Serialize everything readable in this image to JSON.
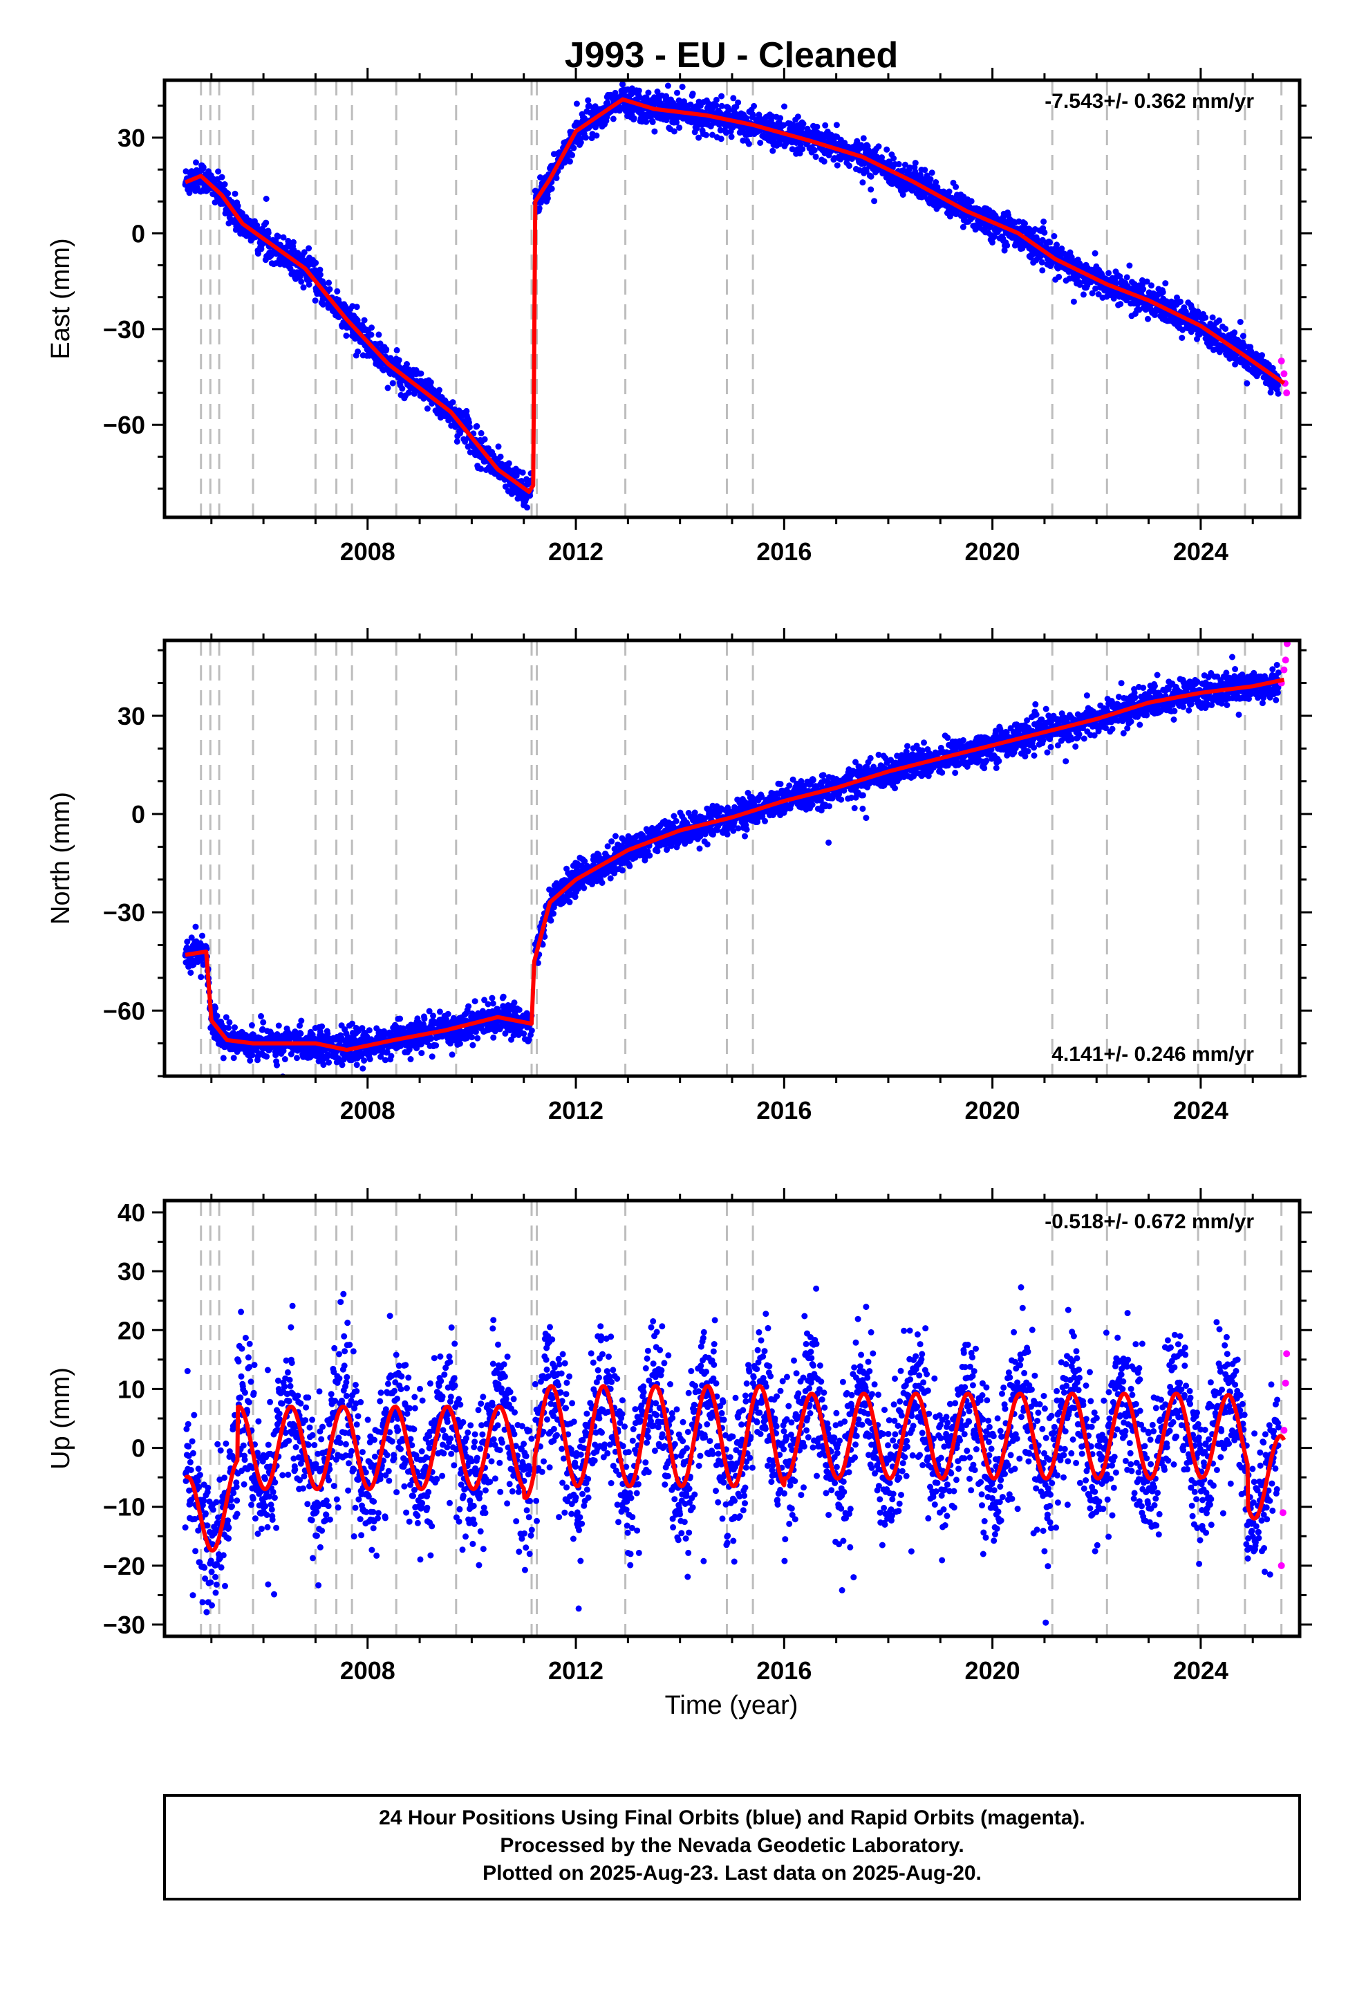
{
  "title": "J993  - EU - Cleaned",
  "xlabel": "Time (year)",
  "footer": [
    "24 Hour Positions Using Final Orbits (blue) and Rapid Orbits (magenta).",
    "Processed by the Nevada Geodetic Laboratory.",
    "Plotted on 2025-Aug-23. Last data on 2025-Aug-20."
  ],
  "colors": {
    "final_orbits": "#0000ff",
    "rapid_orbits": "#ff00ff",
    "model": "#ff0000",
    "event_lines": "#bdbdbd"
  },
  "chart_data": [
    {
      "type": "scatter",
      "panel": "east",
      "ylabel": "East (mm)",
      "rate_text": "-7.543+/- 0.362 mm/yr",
      "rate_position": "top-right",
      "xlim": [
        2004.1,
        2025.9
      ],
      "ylim": [
        -89,
        48
      ],
      "yticks": [
        30,
        0,
        -30,
        -60
      ],
      "xticks": [
        2008,
        2012,
        2016,
        2020,
        2024
      ],
      "model_line": {
        "name": "",
        "x": [
          2004.5,
          2004.8,
          2005.2,
          2005.6,
          2006.8,
          2007.6,
          2008.4,
          2009.6,
          2010.5,
          2011.1,
          2011.18,
          2011.22,
          2011.5,
          2012.0,
          2012.9,
          2013.5,
          2014.5,
          2015.4,
          2016.5,
          2017.5,
          2018.5,
          2019.5,
          2020.5,
          2021.2,
          2022.2,
          2023.0,
          2024.0,
          2024.9,
          2025.6
        ],
        "y": [
          16,
          18,
          12,
          3,
          -11,
          -27,
          -41,
          -56,
          -74,
          -81,
          -79,
          10,
          17,
          32,
          42,
          39,
          37,
          34,
          29,
          24,
          16,
          7,
          0,
          -8,
          -16,
          -21,
          -29,
          -39,
          -47
        ]
      },
      "final_scatter": "blue points scattered around model, spread ~3 mm",
      "rapid_points": {
        "x": [
          2025.55,
          2025.6,
          2025.62,
          2025.65
        ],
        "y": [
          -40,
          -44,
          -47,
          -50
        ]
      }
    },
    {
      "type": "scatter",
      "panel": "north",
      "ylabel": "North (mm)",
      "rate_text": "4.141+/- 0.246 mm/yr",
      "rate_position": "bottom-right",
      "xlim": [
        2004.1,
        2025.9
      ],
      "ylim": [
        -80,
        53
      ],
      "yticks": [
        30,
        0,
        -30,
        -60
      ],
      "xticks": [
        2008,
        2012,
        2016,
        2020,
        2024
      ],
      "model_line": {
        "name": "",
        "x": [
          2004.5,
          2004.9,
          2005.0,
          2005.3,
          2005.8,
          2007.0,
          2007.6,
          2008.5,
          2009.5,
          2010.5,
          2011.15,
          2011.2,
          2011.5,
          2012.0,
          2013.0,
          2014.0,
          2015.0,
          2016.0,
          2017.0,
          2018.0,
          2019.0,
          2020.0,
          2021.0,
          2022.0,
          2023.0,
          2024.0,
          2025.0,
          2025.6
        ],
        "y": [
          -43,
          -42,
          -63,
          -69,
          -70,
          -70,
          -72,
          -69,
          -66,
          -62,
          -64,
          -45,
          -27,
          -20,
          -11,
          -5,
          -1,
          4,
          8,
          13,
          17,
          21,
          25,
          29,
          34,
          37,
          39,
          41
        ]
      },
      "final_scatter": "blue points scattered around model, spread ~3 mm",
      "rapid_points": {
        "x": [
          2025.55,
          2025.6,
          2025.63,
          2025.66
        ],
        "y": [
          40,
          44,
          47,
          52
        ]
      }
    },
    {
      "type": "scatter",
      "panel": "up",
      "ylabel": "Up (mm)",
      "rate_text": "-0.518+/- 0.672 mm/yr",
      "rate_position": "top-right",
      "xlim": [
        2004.1,
        2025.9
      ],
      "ylim": [
        -32,
        42
      ],
      "yticks": [
        40,
        30,
        20,
        10,
        0,
        -10,
        -20,
        -30
      ],
      "xticks": [
        2008,
        2012,
        2016,
        2020,
        2024
      ],
      "model_line": {
        "name": "",
        "description": "annual sinusoid, amplitude ~7-12 mm, peaks near mid-year",
        "x_start": 2004.5,
        "x_end": 2025.6
      },
      "final_scatter": "blue points scattered around model, spread ~7 mm, outliers to +/-30 mm",
      "rapid_points": {
        "x": [
          2025.55,
          2025.58,
          2025.6,
          2025.63,
          2025.65
        ],
        "y": [
          -20,
          -11,
          3,
          11,
          16
        ]
      }
    }
  ],
  "event_lines_x": [
    2004.8,
    2004.98,
    2005.15,
    2005.8,
    2007.0,
    2007.4,
    2007.7,
    2008.55,
    2009.7,
    2011.15,
    2011.25,
    2012.95,
    2014.9,
    2015.4,
    2021.15,
    2022.2,
    2023.95,
    2024.85,
    2025.55
  ]
}
